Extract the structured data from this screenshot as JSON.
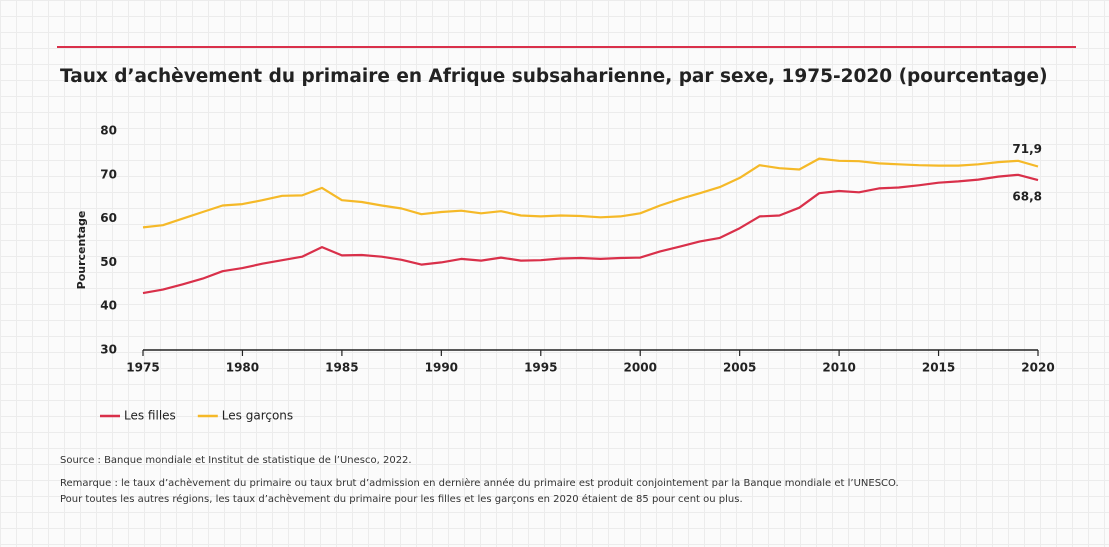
{
  "chart_data": {
    "type": "line",
    "title": "Taux d’achèvement du primaire en Afrique subsaharienne, par sexe, 1975-2020 (pourcentage)",
    "y_label": "Pourcentage",
    "source": "Source : Banque mondiale et Institut de statistique de l’Unesco, 2022.",
    "note": [
      "Remarque : le taux d’achèvement du primaire ou taux brut d’admission en dernière année du primaire est produit conjointement par la Banque mondiale et l’UNESCO.",
      "Pour toutes les autres régions, les taux d’achèvement du primaire pour les filles et les garçons en 2020 étaient de 85 pour cent ou plus."
    ],
    "x": [
      1975,
      1976,
      1977,
      1978,
      1979,
      1980,
      1981,
      1982,
      1983,
      1984,
      1985,
      1986,
      1987,
      1988,
      1989,
      1990,
      1991,
      1992,
      1993,
      1994,
      1995,
      1996,
      1997,
      1998,
      1999,
      2000,
      2001,
      2002,
      2003,
      2004,
      2005,
      2006,
      2007,
      2008,
      2009,
      2010,
      2011,
      2012,
      2013,
      2014,
      2015,
      2016,
      2017,
      2018,
      2019,
      2020
    ],
    "xlim": [
      1975,
      2020
    ],
    "xticks": [
      1975,
      1980,
      1985,
      1990,
      1995,
      2000,
      2005,
      2010,
      2015,
      2020
    ],
    "ylim": [
      30,
      80
    ],
    "yticks": [
      30,
      40,
      50,
      60,
      70,
      80
    ],
    "grid": false,
    "legend": "bottom-left",
    "series": [
      {
        "name": "Les filles",
        "color": "#d9304a",
        "values": [
          43,
          43.8,
          45,
          46.3,
          48,
          48.7,
          49.7,
          50.5,
          51.3,
          53.5,
          51.6,
          51.7,
          51.3,
          50.6,
          49.5,
          50,
          50.8,
          50.4,
          51.1,
          50.4,
          50.5,
          50.9,
          51,
          50.8,
          51,
          51.1,
          52.5,
          53.6,
          54.8,
          55.6,
          57.8,
          60.5,
          60.7,
          62.5,
          65.8,
          66.3,
          66,
          66.9,
          67.1,
          67.6,
          68.2,
          68.5,
          68.9,
          69.6,
          70,
          68.8
        ],
        "value_labels": [
          null,
          null,
          null,
          null,
          null,
          null,
          null,
          null,
          null,
          null,
          null,
          null,
          null,
          null,
          null,
          null,
          null,
          null,
          null,
          null,
          null,
          null,
          null,
          null,
          null,
          null,
          null,
          null,
          null,
          null,
          null,
          null,
          null,
          null,
          null,
          null,
          null,
          null,
          null,
          null,
          null,
          null,
          null,
          null,
          null,
          "68,8"
        ]
      },
      {
        "name": "Les garçons",
        "color": "#f5b928",
        "values": [
          58,
          58.5,
          60,
          61.5,
          63,
          63.3,
          64.2,
          65.2,
          65.3,
          67,
          64.2,
          63.8,
          63,
          62.3,
          61,
          61.5,
          61.8,
          61.2,
          61.7,
          60.7,
          60.5,
          60.7,
          60.6,
          60.3,
          60.5,
          61.2,
          63,
          64.5,
          65.8,
          67.2,
          69.3,
          72.2,
          71.5,
          71.2,
          73.7,
          73.2,
          73.1,
          72.6,
          72.4,
          72.2,
          72.1,
          72.1,
          72.4,
          72.9,
          73.2,
          71.9
        ],
        "value_labels": [
          null,
          null,
          null,
          null,
          null,
          null,
          null,
          null,
          null,
          null,
          null,
          null,
          null,
          null,
          null,
          null,
          null,
          null,
          null,
          null,
          null,
          null,
          null,
          null,
          null,
          null,
          null,
          null,
          null,
          null,
          null,
          null,
          null,
          null,
          null,
          null,
          null,
          null,
          null,
          null,
          null,
          null,
          null,
          null,
          null,
          "71,9"
        ]
      }
    ]
  }
}
